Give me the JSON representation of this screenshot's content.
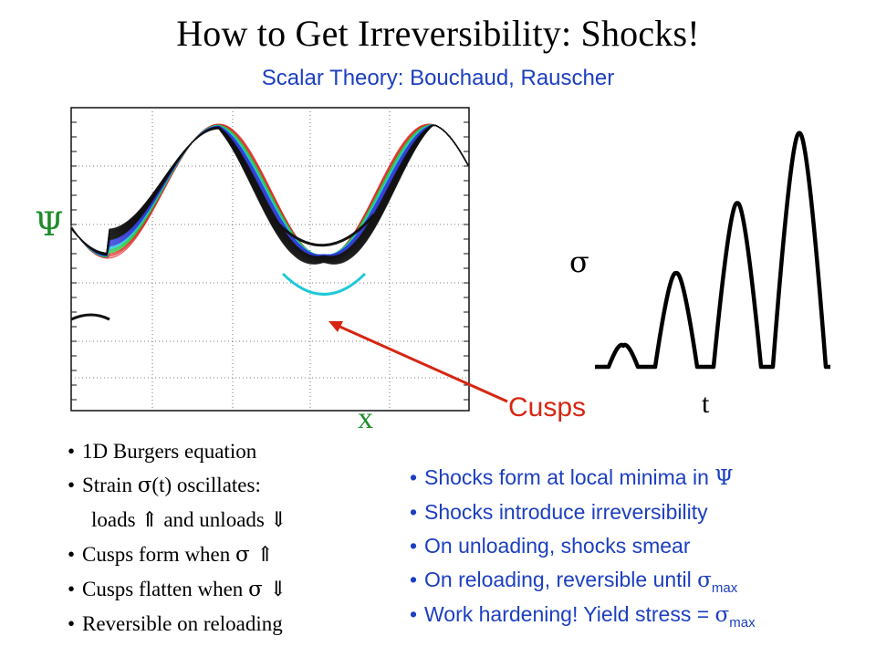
{
  "slide": {
    "title": "How to Get Irreversibility: Shocks!",
    "subtitle": "Scalar Theory: Bouchaud, Rauscher"
  },
  "left_plot": {
    "y_label": "Ψ",
    "x_label": "x",
    "annotation": "Cusps",
    "annotation_color": "#d62612",
    "curve_colors": [
      "#111111",
      "#2e3bd6",
      "#1fc8d8",
      "#27c43a",
      "#e02020"
    ]
  },
  "right_plot": {
    "y_label": "σ",
    "x_label": "t",
    "peak_levels": [
      0.09,
      0.4,
      0.7,
      1.0
    ],
    "note": ""
  },
  "left_bullets": [
    {
      "text": "1D Burgers equation"
    },
    {
      "pre": "Strain ",
      "sym": "σ",
      "post": "(t) oscillates:"
    },
    {
      "pre": "loads ",
      "sym": "⇑",
      "post": " and unloads ",
      "sym2": "⇓",
      "indent": true
    },
    {
      "pre": "Cusps form when ",
      "sym": "σ ⇑"
    },
    {
      "pre": "Cusps flatten when ",
      "sym": "σ ⇓"
    },
    {
      "text": "Reversible on reloading"
    }
  ],
  "right_bullets": [
    {
      "pre": "Shocks form at local minima in ",
      "sym": "Ψ"
    },
    {
      "text": "Shocks introduce irreversibility"
    },
    {
      "text": "On unloading, shocks smear"
    },
    {
      "pre": "On reloading, reversible until ",
      "sym": "σ",
      "sub": "max"
    },
    {
      "pre": "Work hardening! Yield stress = ",
      "sym": "σ",
      "sub": "max"
    }
  ]
}
